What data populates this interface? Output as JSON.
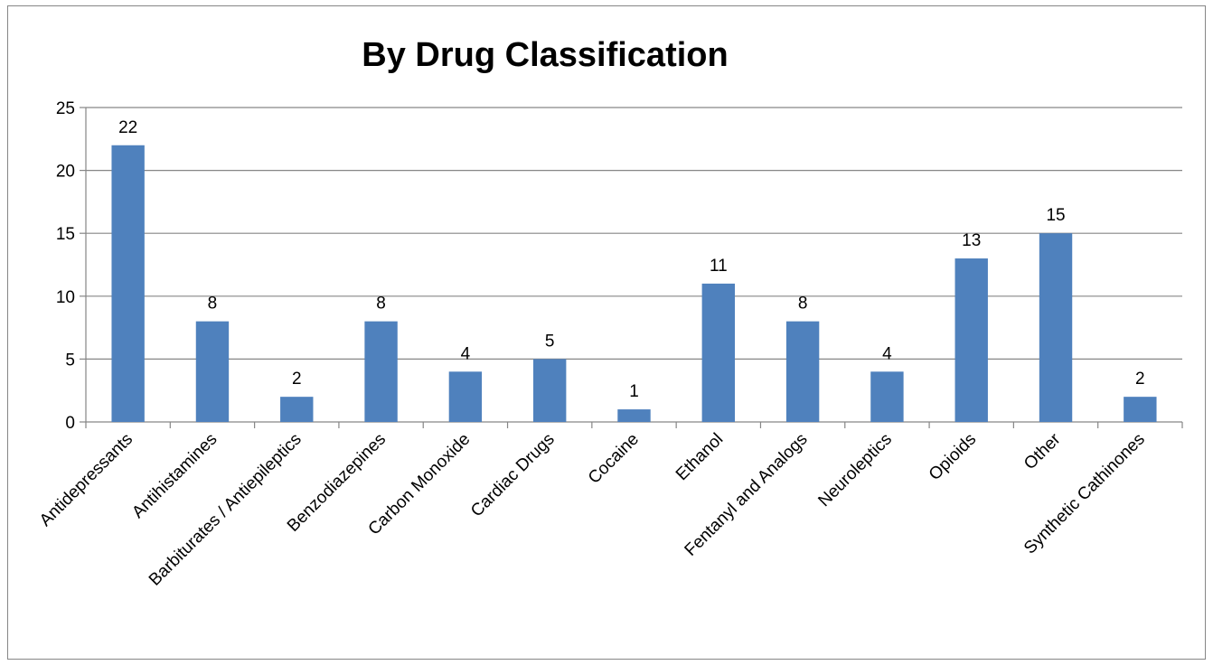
{
  "chart_data": {
    "type": "bar",
    "title": "By Drug Classification",
    "xlabel": "",
    "ylabel": "",
    "ylim": [
      0,
      25
    ],
    "yticks": [
      0,
      5,
      10,
      15,
      20,
      25
    ],
    "grid": true,
    "legend": "none",
    "categories": [
      "Antidepressants",
      "Antihistamines",
      "Barbiturates / Antiepileptics",
      "Benzodiazepines",
      "Carbon Monoxide",
      "Cardiac Drugs",
      "Cocaine",
      "Ethanol",
      "Fentanyl and Analogs",
      "Neuroleptics",
      "Opioids",
      "Other",
      "Synthetic Cathinones"
    ],
    "values": [
      22,
      8,
      2,
      8,
      4,
      5,
      1,
      11,
      8,
      4,
      13,
      15,
      2
    ],
    "colors": {
      "bar": "#4F81BD",
      "grid": "#868686",
      "axis": "#868686",
      "frame": "#868686"
    }
  }
}
